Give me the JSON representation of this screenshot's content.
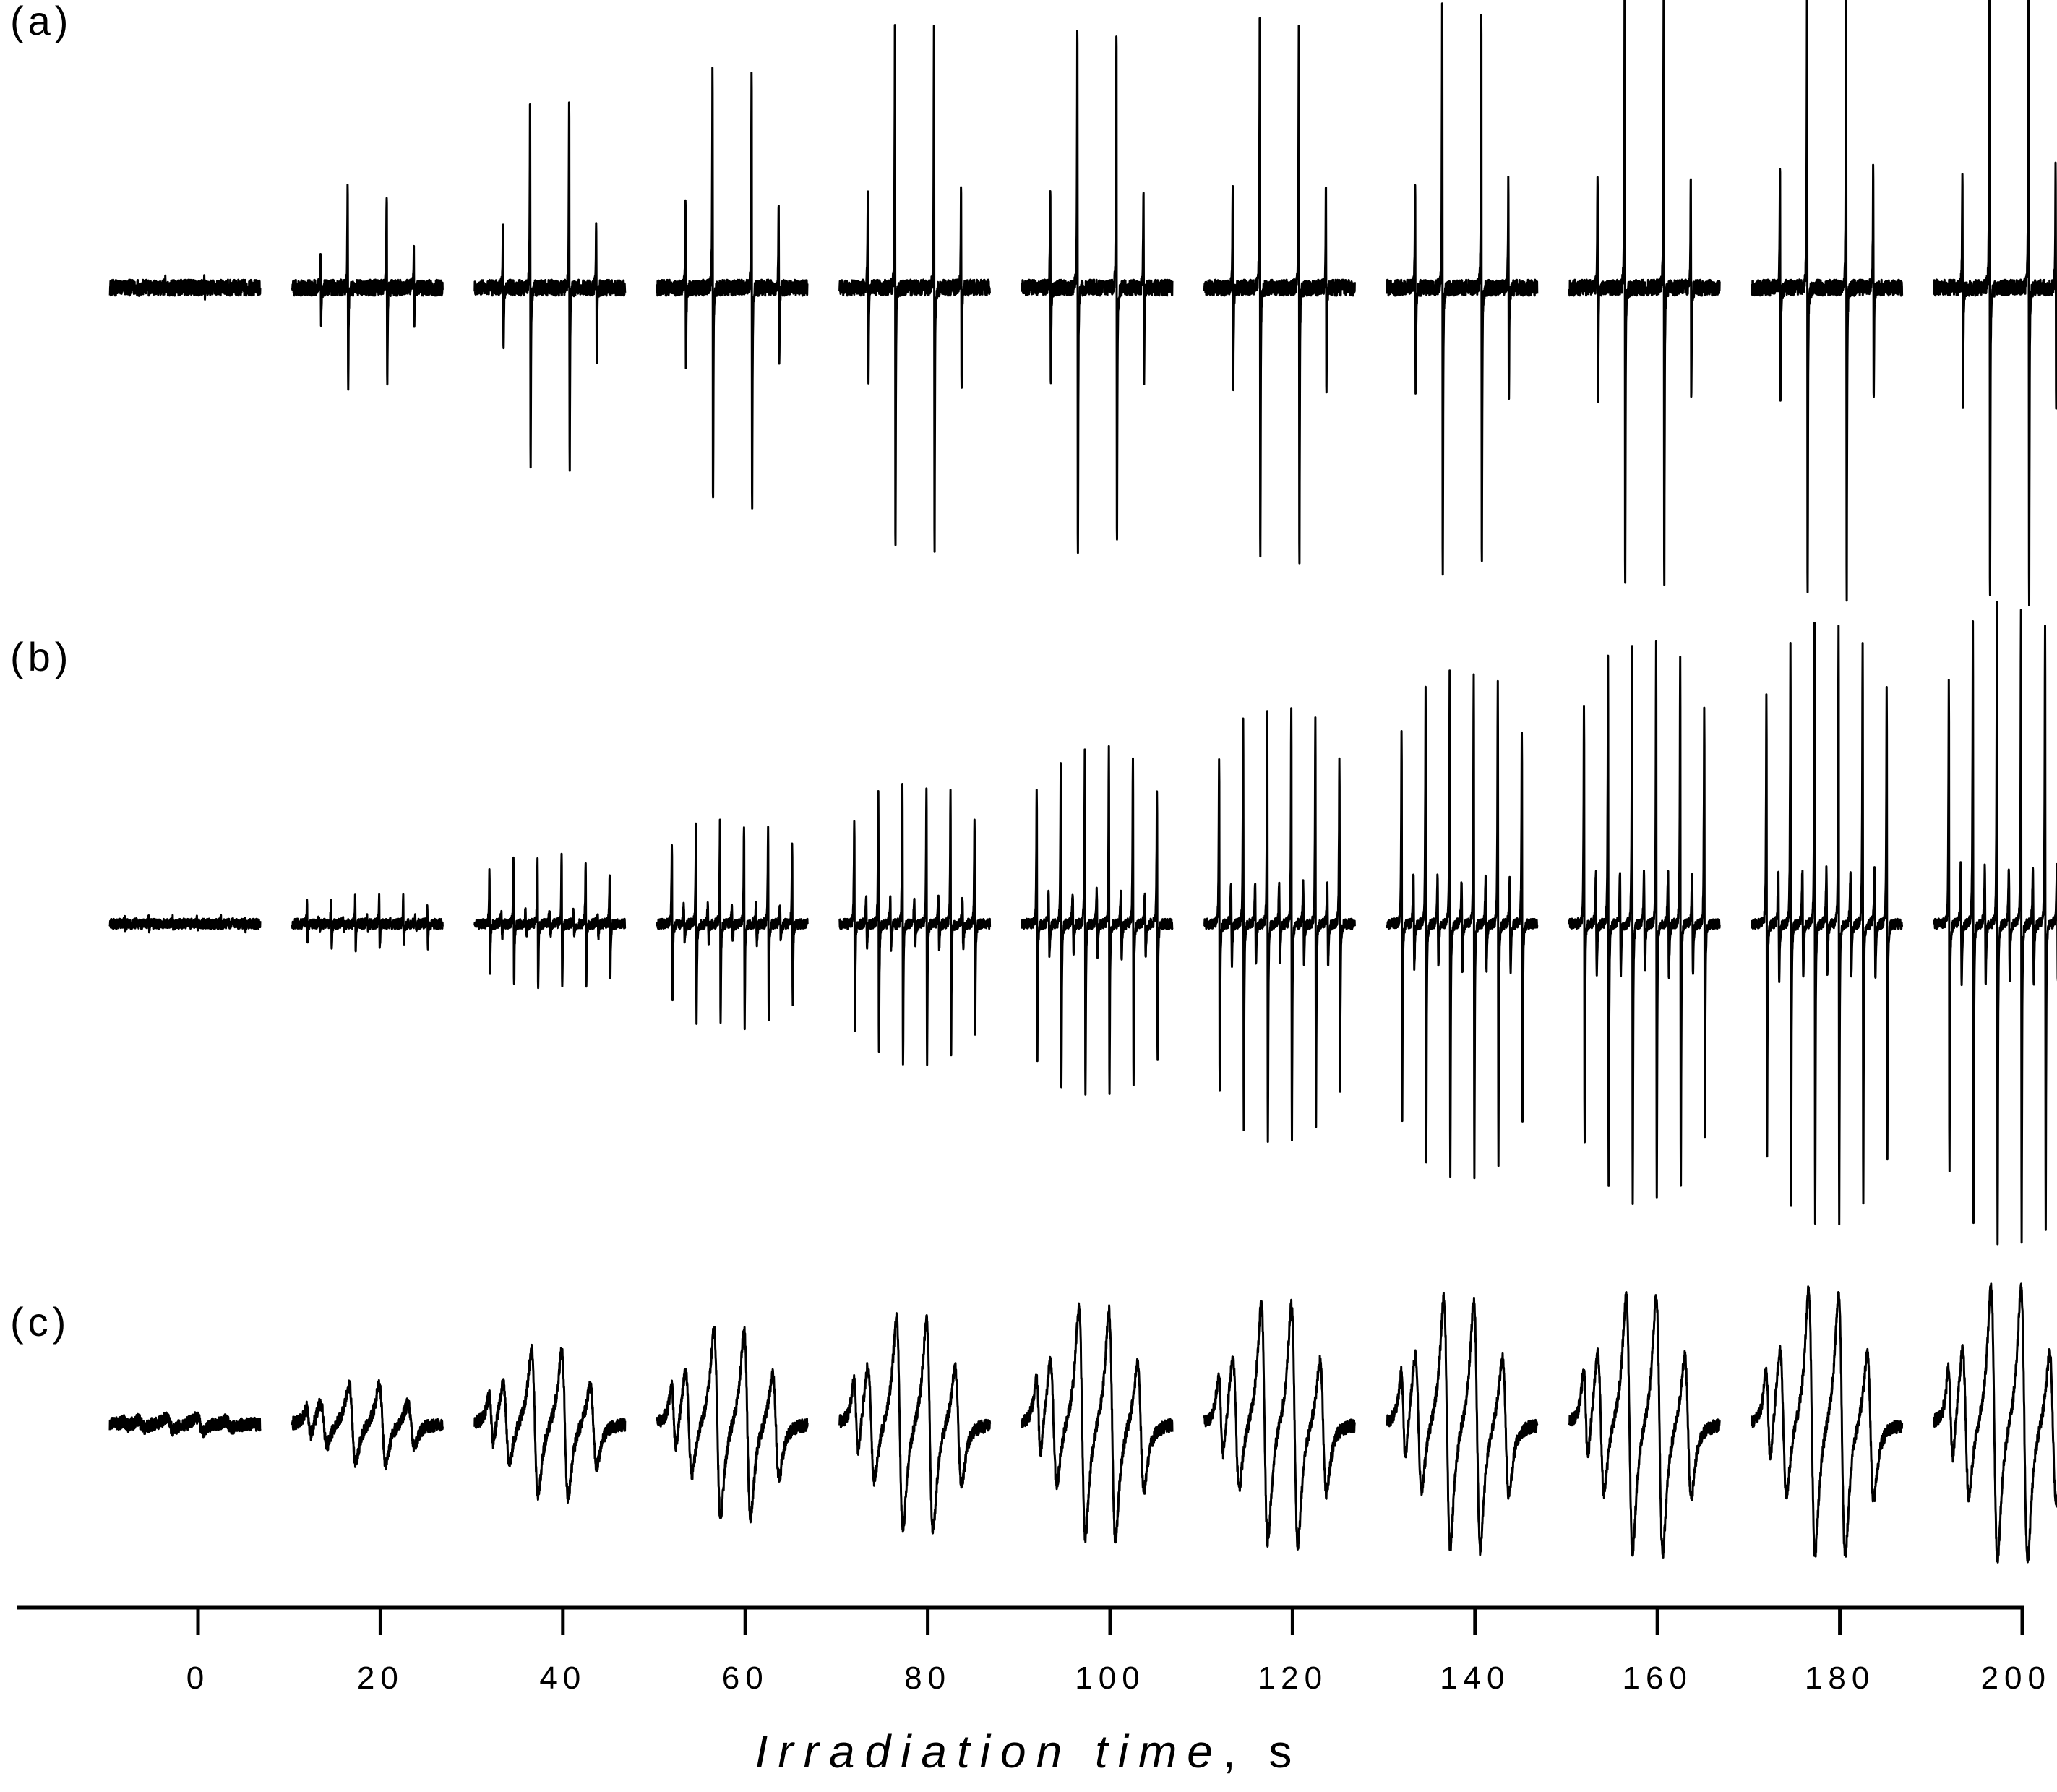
{
  "chart_data": {
    "type": "line",
    "title": "",
    "xlabel_main": "Irradiation time",
    "xlabel_sep": ", ",
    "xlabel_unit": "s",
    "xlim": [
      -10,
      200
    ],
    "x_ticks": [
      0,
      20,
      40,
      60,
      80,
      100,
      120,
      140,
      160,
      180,
      200
    ],
    "x_tick_labels": [
      "0",
      "20",
      "40",
      "60",
      "80",
      "100",
      "120",
      "140",
      "160",
      "180",
      "200"
    ],
    "line_color": "#000000",
    "spectra_times": [
      0,
      20,
      40,
      60,
      80,
      100,
      120,
      140,
      160,
      180,
      200
    ],
    "panels": [
      {
        "label": "(a)",
        "pattern": "quartet",
        "relative_amplitude": [
          0.02,
          0.36,
          0.66,
          0.8,
          0.96,
          0.96,
          1.0,
          1.04,
          1.1,
          1.14,
          1.16
        ]
      },
      {
        "label": "(b)",
        "pattern": "sextet",
        "relative_amplitude": [
          0.02,
          0.1,
          0.25,
          0.38,
          0.52,
          0.66,
          0.82,
          0.95,
          1.05,
          1.13,
          1.2
        ]
      },
      {
        "label": "(c)",
        "pattern": "broad",
        "relative_amplitude": [
          0.05,
          0.3,
          0.56,
          0.72,
          0.82,
          0.88,
          0.92,
          0.96,
          0.99,
          1.02,
          1.05
        ]
      }
    ]
  }
}
